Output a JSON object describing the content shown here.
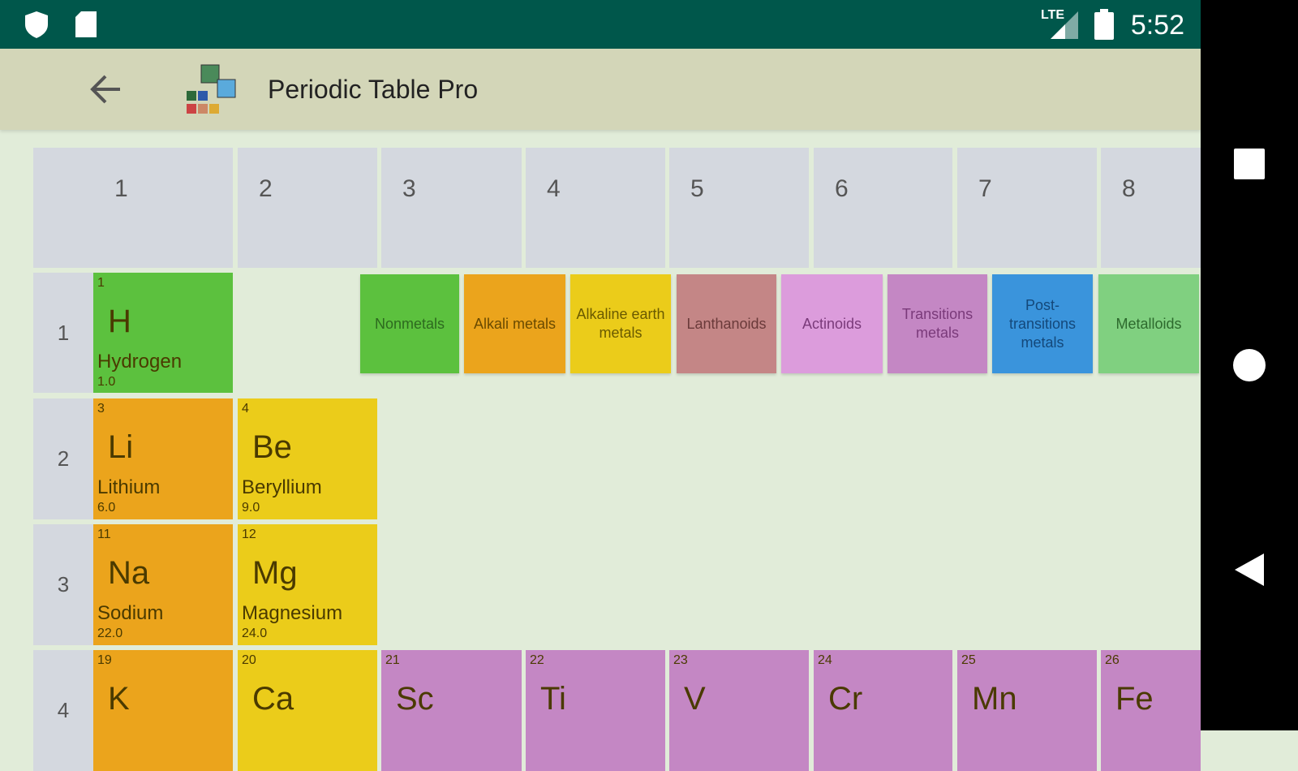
{
  "status_bar": {
    "time": "5:52",
    "network": "LTE",
    "icons": [
      "shield-icon",
      "sd-card-icon",
      "signal-icon",
      "battery-icon"
    ]
  },
  "toolbar": {
    "title": "Periodic Table Pro",
    "back_icon": "arrow-left-icon",
    "logo": "app-logo"
  },
  "groups": [
    "1",
    "2",
    "3",
    "4",
    "5",
    "6",
    "7",
    "8"
  ],
  "periods": [
    "1",
    "2",
    "3",
    "4"
  ],
  "legend": [
    {
      "label": "Nonmetals",
      "color": "#5cc13e",
      "text": "#2d6a1f"
    },
    {
      "label": "Alkali metals",
      "color": "#eba41c",
      "text": "#6a4a00"
    },
    {
      "label": "Alkaline earth metals",
      "color": "#ebcc1a",
      "text": "#6a5a00"
    },
    {
      "label": "Lanthanoids",
      "color": "#c48686",
      "text": "#6a3a3a"
    },
    {
      "label": "Actinoids",
      "color": "#dc9cdc",
      "text": "#7a3a7a"
    },
    {
      "label": "Transitions metals",
      "color": "#c487c4",
      "text": "#7a3a7a"
    },
    {
      "label": "Post-transitions metals",
      "color": "#3a94dc",
      "text": "#14487a"
    },
    {
      "label": "Metalloids",
      "color": "#80d080",
      "text": "#2d6a2d"
    }
  ],
  "elements": [
    {
      "number": "1",
      "symbol": "H",
      "name": "Hydrogen",
      "mass": "1.0",
      "color": "#5cc13e"
    },
    {
      "number": "3",
      "symbol": "Li",
      "name": "Lithium",
      "mass": "6.0",
      "color": "#eba41c"
    },
    {
      "number": "4",
      "symbol": "Be",
      "name": "Beryllium",
      "mass": "9.0",
      "color": "#ebcc1a"
    },
    {
      "number": "11",
      "symbol": "Na",
      "name": "Sodium",
      "mass": "22.0",
      "color": "#eba41c"
    },
    {
      "number": "12",
      "symbol": "Mg",
      "name": "Magnesium",
      "mass": "24.0",
      "color": "#ebcc1a"
    },
    {
      "number": "19",
      "symbol": "K",
      "name": "",
      "mass": "",
      "color": "#eba41c"
    },
    {
      "number": "20",
      "symbol": "Ca",
      "name": "",
      "mass": "",
      "color": "#ebcc1a"
    },
    {
      "number": "21",
      "symbol": "Sc",
      "name": "",
      "mass": "",
      "color": "#c487c4"
    },
    {
      "number": "22",
      "symbol": "Ti",
      "name": "",
      "mass": "",
      "color": "#c487c4"
    },
    {
      "number": "23",
      "symbol": "V",
      "name": "",
      "mass": "",
      "color": "#c487c4"
    },
    {
      "number": "24",
      "symbol": "Cr",
      "name": "",
      "mass": "",
      "color": "#c487c4"
    },
    {
      "number": "25",
      "symbol": "Mn",
      "name": "",
      "mass": "",
      "color": "#c487c4"
    },
    {
      "number": "26",
      "symbol": "Fe",
      "name": "",
      "mass": "",
      "color": "#c487c4"
    }
  ],
  "nav": {
    "icons": [
      "recents-square-icon",
      "home-circle-icon",
      "back-triangle-icon"
    ]
  }
}
